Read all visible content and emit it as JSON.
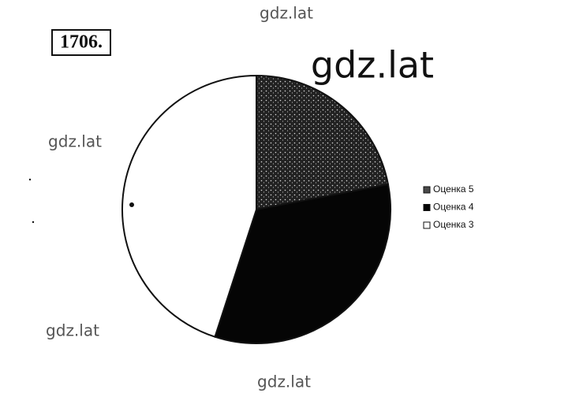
{
  "problem": "1706.",
  "watermarks": [
    "gdz.lat",
    "gdz.lat",
    "gdz.lat",
    "gdz.lat",
    "gdz.lat"
  ],
  "chart_data": {
    "type": "pie",
    "categories": [
      "Оценка 5",
      "Оценка 4",
      "Оценка 3"
    ],
    "values": [
      22,
      33,
      45
    ],
    "colors": [
      "#4a4a4a",
      "#050505",
      "#ffffff"
    ],
    "legend": "right"
  }
}
